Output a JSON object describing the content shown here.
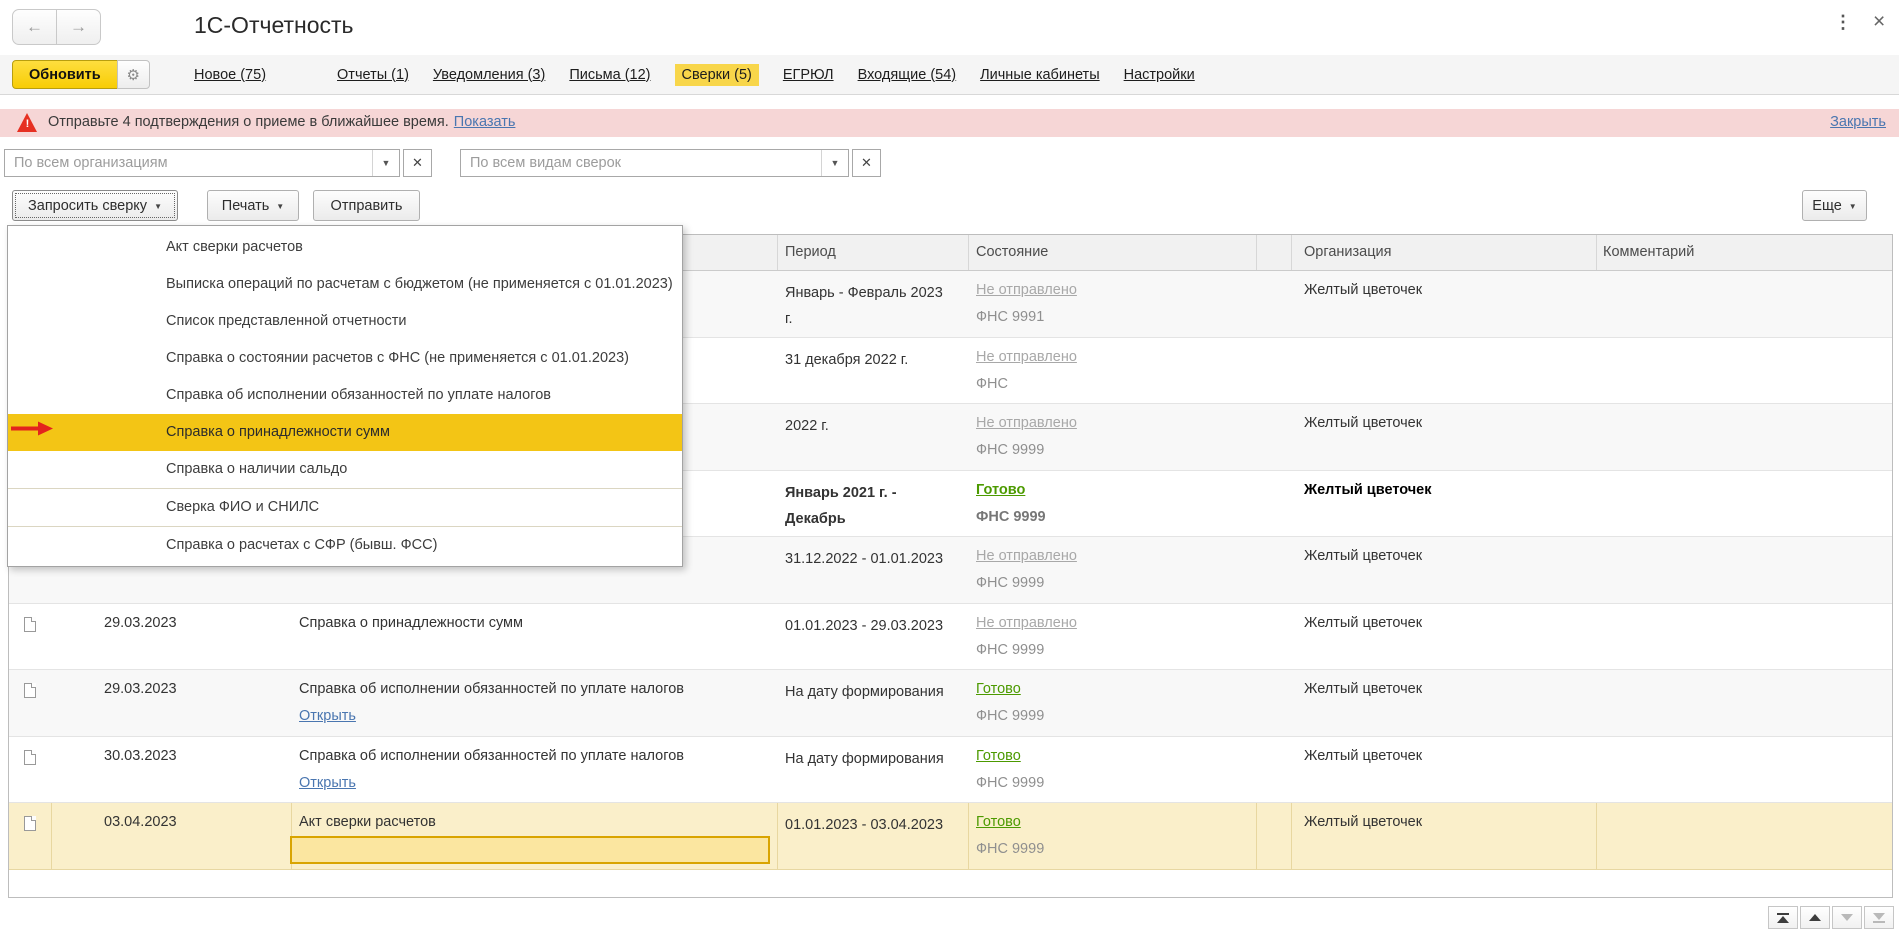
{
  "window": {
    "title": "1С-Отчетность",
    "back_icon": "←",
    "forward_icon": "→",
    "kebab_icon": "⋮",
    "close_icon": "×"
  },
  "toolbar": {
    "refresh": "Обновить",
    "gear_icon": "⚙",
    "tabs": [
      {
        "label": "Новое (75)",
        "active": false,
        "gap_after": true
      },
      {
        "label": "Отчеты (1)",
        "active": false
      },
      {
        "label": "Уведомления (3)",
        "active": false
      },
      {
        "label": "Письма (12)",
        "active": false
      },
      {
        "label": "Сверки (5)",
        "active": true
      },
      {
        "label": "ЕГРЮЛ",
        "active": false
      },
      {
        "label": "Входящие (54)",
        "active": false
      },
      {
        "label": "Личные кабинеты",
        "active": false
      },
      {
        "label": "Настройки",
        "active": false
      }
    ]
  },
  "banner": {
    "warning_icon": "!",
    "text": "Отправьте 4 подтверждения о приеме в ближайшее время.",
    "show_link": "Показать",
    "close_link": "Закрыть"
  },
  "filters": {
    "organization": {
      "value": "По всем организациям",
      "dropdown_icon": "▼",
      "clear_icon": "✕"
    },
    "kind": {
      "value": "По всем видам сверок",
      "dropdown_icon": "▼",
      "clear_icon": "✕"
    }
  },
  "actions": {
    "request": "Запросить сверку",
    "print": "Печать",
    "send": "Отправить",
    "more": "Еще",
    "dropdown_icon": "▼"
  },
  "request_menu": {
    "items": [
      {
        "label": "Акт сверки расчетов"
      },
      {
        "label": "Выписка операций по расчетам с бюджетом (не применяется с 01.01.2023)"
      },
      {
        "label": "Список представленной отчетности"
      },
      {
        "label": "Справка о состоянии расчетов с ФНС (не применяется с 01.01.2023)"
      },
      {
        "label": "Справка об исполнении обязанностей по уплате налогов"
      },
      {
        "label": "Справка о принадлежности сумм",
        "highlighted": true
      },
      {
        "label": "Справка о наличии сальдо",
        "separator_after": true
      },
      {
        "label": "Сверка ФИО и СНИЛС",
        "separator_after": true
      },
      {
        "label": "Справка о расчетах с СФР (бывш. ФСС)"
      }
    ]
  },
  "table": {
    "headers": {
      "period": "Период",
      "state": "Состояние",
      "organization": "Организация",
      "comment": "Комментарий"
    },
    "open_link_label": "Открыть",
    "rows": [
      {
        "date": "",
        "type": "",
        "period": "Январь - Февраль 2023 г.",
        "state": "Не отправлено",
        "state_done": false,
        "department": "ФНС 9991",
        "organization": "Желтый цветочек",
        "comment": ""
      },
      {
        "date": "",
        "type": "",
        "period": "31 декабря 2022 г.",
        "state": "Не отправлено",
        "state_done": false,
        "department": "ФНС",
        "organization": "",
        "comment": ""
      },
      {
        "date": "",
        "type": "",
        "period": "2022 г.",
        "state": "Не отправлено",
        "state_done": false,
        "department": "ФНС 9999",
        "organization": "Желтый цветочек",
        "comment": ""
      },
      {
        "date": "",
        "type": "",
        "period": "Январь 2021 г. - Декабрь",
        "state": "Готово",
        "state_done": true,
        "department": "ФНС 9999",
        "organization": "Желтый цветочек",
        "bold": true,
        "comment": ""
      },
      {
        "date": "",
        "type": "",
        "period": "31.12.2022 - 01.01.2023",
        "state": "Не отправлено",
        "state_done": false,
        "department": "ФНС 9999",
        "organization": "Желтый цветочек",
        "comment": ""
      },
      {
        "date": "29.03.2023",
        "type": "Справка о принадлежности сумм",
        "period": "01.01.2023 - 29.03.2023",
        "state": "Не отправлено",
        "state_done": false,
        "department": "ФНС 9999",
        "organization": "Желтый цветочек",
        "comment": ""
      },
      {
        "date": "29.03.2023",
        "type": "Справка об исполнении обязанностей по уплате налогов",
        "open_link": true,
        "period": "На дату формирования",
        "state": "Готово",
        "state_done": true,
        "department": "ФНС 9999",
        "organization": "Желтый цветочек",
        "comment": ""
      },
      {
        "date": "30.03.2023",
        "type": "Справка об исполнении обязанностей по уплате налогов",
        "open_link": true,
        "period": "На дату формирования",
        "state": "Готово",
        "state_done": true,
        "department": "ФНС 9999",
        "organization": "Желтый цветочек",
        "comment": ""
      },
      {
        "date": "03.04.2023",
        "type": "Акт сверки расчетов",
        "period": "01.01.2023 - 03.04.2023",
        "state": "Готово",
        "state_done": true,
        "department": "ФНС 9999",
        "organization": "Желтый цветочек",
        "selected": true,
        "comment": ""
      }
    ]
  },
  "colors": {
    "accent_yellow": "#f3c515",
    "tab_highlight": "#f8d64a",
    "selected_row": "#faefca",
    "focus_cell_border": "#d9a400",
    "banner_pink": "#f6d6d6",
    "warning_red": "#e63022",
    "link_blue": "#4a76b0",
    "done_green": "#4c9a00",
    "muted_gray": "#a8a8a8"
  }
}
